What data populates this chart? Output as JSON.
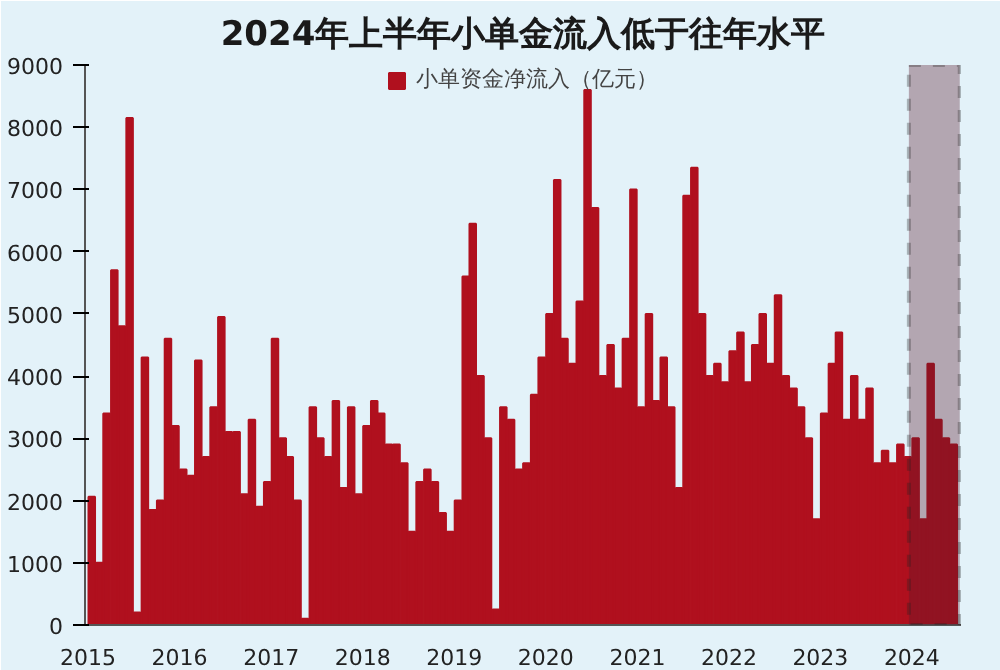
{
  "chart_data": {
    "type": "bar",
    "title": "2024年上半年小单金流入低于往年水平",
    "x": [
      "2015-01",
      "2015-02",
      "2015-03",
      "2015-04",
      "2015-05",
      "2015-06",
      "2015-07",
      "2015-08",
      "2015-09",
      "2015-10",
      "2015-11",
      "2015-12",
      "2016-01",
      "2016-02",
      "2016-03",
      "2016-04",
      "2016-05",
      "2016-06",
      "2016-07",
      "2016-08",
      "2016-09",
      "2016-10",
      "2016-11",
      "2016-12",
      "2017-01",
      "2017-02",
      "2017-03",
      "2017-04",
      "2017-05",
      "2017-06",
      "2017-07",
      "2017-08",
      "2017-09",
      "2017-10",
      "2017-11",
      "2017-12",
      "2018-01",
      "2018-02",
      "2018-03",
      "2018-04",
      "2018-05",
      "2018-06",
      "2018-07",
      "2018-08",
      "2018-09",
      "2018-10",
      "2018-11",
      "2018-12",
      "2019-01",
      "2019-02",
      "2019-03",
      "2019-04",
      "2019-05",
      "2019-06",
      "2019-07",
      "2019-08",
      "2019-09",
      "2019-10",
      "2019-11",
      "2019-12",
      "2020-01",
      "2020-02",
      "2020-03",
      "2020-04",
      "2020-05",
      "2020-06",
      "2020-07",
      "2020-08",
      "2020-09",
      "2020-10",
      "2020-11",
      "2020-12",
      "2021-01",
      "2021-02",
      "2021-03",
      "2021-04",
      "2021-05",
      "2021-06",
      "2021-07",
      "2021-08",
      "2021-09",
      "2021-10",
      "2021-11",
      "2021-12",
      "2022-01",
      "2022-02",
      "2022-03",
      "2022-04",
      "2022-05",
      "2022-06",
      "2022-07",
      "2022-08",
      "2022-09",
      "2022-10",
      "2022-11",
      "2022-12",
      "2023-01",
      "2023-02",
      "2023-03",
      "2023-04",
      "2023-05",
      "2023-06",
      "2023-07",
      "2023-08",
      "2023-09",
      "2023-10",
      "2023-11",
      "2023-12",
      "2024-01",
      "2024-02",
      "2024-03",
      "2024-04",
      "2024-05",
      "2024-06"
    ],
    "series": [
      {
        "name": "小单资金净流入（亿元）",
        "color": "#b0101e",
        "values": [
          2060,
          1000,
          3400,
          5700,
          4800,
          8150,
          200,
          4300,
          1850,
          2000,
          4600,
          3200,
          2500,
          2400,
          4250,
          2700,
          3500,
          4950,
          3100,
          3100,
          2100,
          3300,
          1900,
          2300,
          4600,
          3000,
          2700,
          2000,
          100,
          3500,
          3000,
          2700,
          3600,
          2200,
          3500,
          2100,
          3200,
          3600,
          3400,
          2900,
          2900,
          2600,
          1500,
          2300,
          2500,
          2300,
          1800,
          1500,
          2000,
          5600,
          6450,
          4000,
          3000,
          250,
          3500,
          3300,
          2500,
          2600,
          3700,
          4300,
          5000,
          7150,
          4600,
          4200,
          5200,
          8600,
          6700,
          4000,
          4500,
          3800,
          4600,
          7000,
          3500,
          5000,
          3600,
          4300,
          3500,
          2200,
          6900,
          7350,
          5000,
          4000,
          4200,
          3900,
          4400,
          4700,
          3900,
          4500,
          5000,
          4200,
          5300,
          4000,
          3800,
          3500,
          3000,
          1700,
          3400,
          4200,
          4700,
          3300,
          4000,
          3300,
          3800,
          2600,
          2800,
          2600,
          2900,
          2700,
          3000,
          1700,
          4200,
          3300,
          3000,
          2900
        ]
      }
    ],
    "xlim": [
      "2014-12-20",
      "2024-07-15"
    ],
    "xticks": [
      "2015",
      "2016",
      "2017",
      "2018",
      "2019",
      "2020",
      "2021",
      "2022",
      "2023",
      "2024"
    ],
    "ylim": [
      0,
      9000
    ],
    "yticks": [
      0,
      1000,
      2000,
      3000,
      4000,
      5000,
      6000,
      7000,
      8000,
      9000
    ],
    "bands": [
      {
        "axis": "x",
        "from": "2023-12-20",
        "to": "2024-07-10",
        "color": "#5a1a2a"
      }
    ],
    "grid": false,
    "legend": "top"
  }
}
